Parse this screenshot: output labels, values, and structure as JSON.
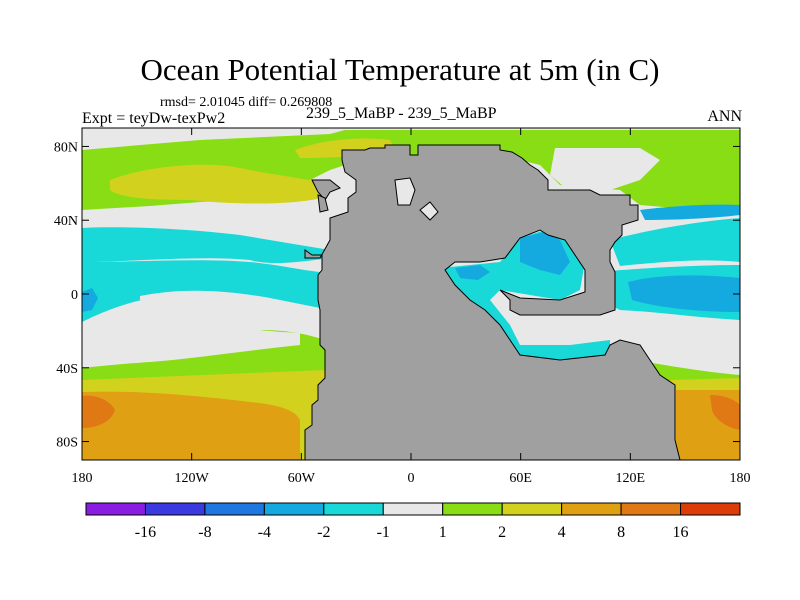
{
  "title": "Ocean Potential Temperature at 5m (in C)",
  "stats": "rmsd= 2.01045 diff= 0.269808",
  "experiment": "Expt = teyDw-texPw2",
  "center_label": "239_5_MaBP - 239_5_MaBP",
  "season": "ANN",
  "colors": {
    "land": "#a0a0a0",
    "neg16": "#8a1ee0",
    "neg8": "#3a3ae0",
    "neg4": "#1e78e0",
    "neg2": "#14aae0",
    "neg1": "#18d8d8",
    "zero": "#e8e8e8",
    "pos1": "#88dd14",
    "pos2": "#d2d21e",
    "pos4": "#e0a014",
    "pos8": "#e07814",
    "pos16": "#dc3c0a"
  },
  "chart_data": {
    "type": "heatmap",
    "title": "Ocean Potential Temperature at 5m (in C)",
    "variable": "Ocean potential temperature difference at 5m (C)",
    "x_range": [
      -180,
      180
    ],
    "y_range": [
      -90,
      90
    ],
    "x_ticks": [
      {
        "value": -180,
        "label": "180"
      },
      {
        "value": -120,
        "label": "120W"
      },
      {
        "value": -60,
        "label": "60W"
      },
      {
        "value": 0,
        "label": "0"
      },
      {
        "value": 60,
        "label": "60E"
      },
      {
        "value": 120,
        "label": "120E"
      },
      {
        "value": 180,
        "label": "180"
      }
    ],
    "y_ticks": [
      {
        "value": 80,
        "label": "80N"
      },
      {
        "value": 40,
        "label": "40N"
      },
      {
        "value": 0,
        "label": "0"
      },
      {
        "value": -40,
        "label": "40S"
      },
      {
        "value": -80,
        "label": "80S"
      }
    ],
    "colorbar": {
      "boundaries": [
        -16,
        -8,
        -4,
        -2,
        -1,
        1,
        2,
        4,
        8,
        16
      ],
      "labels": [
        "-16",
        "-8",
        "-4",
        "-2",
        "-1",
        "1",
        "2",
        "4",
        "8",
        "16"
      ],
      "colors": [
        "#8a1ee0",
        "#3a3ae0",
        "#1e78e0",
        "#14aae0",
        "#18d8d8",
        "#e8e8e8",
        "#88dd14",
        "#d2d21e",
        "#e0a014",
        "#e07814",
        "#dc3c0a"
      ]
    },
    "rmsd": 2.01045,
    "diff": 0.269808
  }
}
